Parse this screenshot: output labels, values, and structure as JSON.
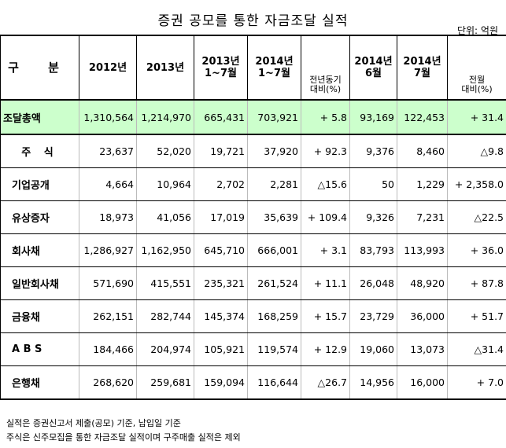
{
  "title": "증권 공모를 통한 자금조달 실적",
  "unit": "단위: 억원",
  "headers": {
    "category": "구 분",
    "y2012": "2012년",
    "y2013": "2013년",
    "y2013_h1": "2013년",
    "y2013_h2": "1~7월",
    "y2014_h1": "2014년",
    "y2014_h2": "1~7월",
    "yoy_h1": "전년동기",
    "yoy_h2": "대비(%)",
    "jun_h1": "2014년",
    "jun_h2": "6월",
    "jul_h1": "2014년",
    "jul_h2": "7월",
    "mom_h1": "전월",
    "mom_h2": "대비(%)"
  },
  "rows": [
    {
      "label": "조달총액",
      "v2012": "1,310,564",
      "v2013": "1,214,970",
      "v2013_17": "665,431",
      "v2014_17": "703,921",
      "yoy": "+ 5.8",
      "jun": "93,169",
      "jul": "122,453",
      "mom": "+ 31.4"
    },
    {
      "label": "주 식",
      "v2012": "23,637",
      "v2013": "52,020",
      "v2013_17": "19,721",
      "v2014_17": "37,920",
      "yoy": "+ 92.3",
      "jun": "9,376",
      "jul": "8,460",
      "mom": "△9.8"
    },
    {
      "label": "기업공개",
      "v2012": "4,664",
      "v2013": "10,964",
      "v2013_17": "2,702",
      "v2014_17": "2,281",
      "yoy": "△15.6",
      "jun": "50",
      "jul": "1,229",
      "mom": "+ 2,358.0"
    },
    {
      "label": "유상증자",
      "v2012": "18,973",
      "v2013": "41,056",
      "v2013_17": "17,019",
      "v2014_17": "35,639",
      "yoy": "+ 109.4",
      "jun": "9,326",
      "jul": "7,231",
      "mom": "△22.5"
    },
    {
      "label": "회사채",
      "v2012": "1,286,927",
      "v2013": "1,162,950",
      "v2013_17": "645,710",
      "v2014_17": "666,001",
      "yoy": "+ 3.1",
      "jun": "83,793",
      "jul": "113,993",
      "mom": "+ 36.0"
    },
    {
      "label": "일반회사채",
      "v2012": "571,690",
      "v2013": "415,551",
      "v2013_17": "235,321",
      "v2014_17": "261,524",
      "yoy": "+ 11.1",
      "jun": "26,048",
      "jul": "48,920",
      "mom": "+ 87.8"
    },
    {
      "label": "금융채",
      "v2012": "262,151",
      "v2013": "282,744",
      "v2013_17": "145,374",
      "v2014_17": "168,259",
      "yoy": "+ 15.7",
      "jun": "23,729",
      "jul": "36,000",
      "mom": "+ 51.7"
    },
    {
      "label": "A B S",
      "v2012": "184,466",
      "v2013": "204,974",
      "v2013_17": "105,921",
      "v2014_17": "119,574",
      "yoy": "+ 12.9",
      "jun": "19,060",
      "jul": "13,073",
      "mom": "△31.4"
    },
    {
      "label": "은행채",
      "v2012": "268,620",
      "v2013": "259,681",
      "v2013_17": "159,094",
      "v2014_17": "116,644",
      "yoy": "△26.7",
      "jun": "14,956",
      "jul": "16,000",
      "mom": "+ 7.0"
    }
  ],
  "footnotes": [
    "실적은 증권신고서 제출(공모) 기준, 납입일 기준",
    "주식은 신주모집을 통한 자금조달 실적이며 구주매출 실적은 제외"
  ]
}
